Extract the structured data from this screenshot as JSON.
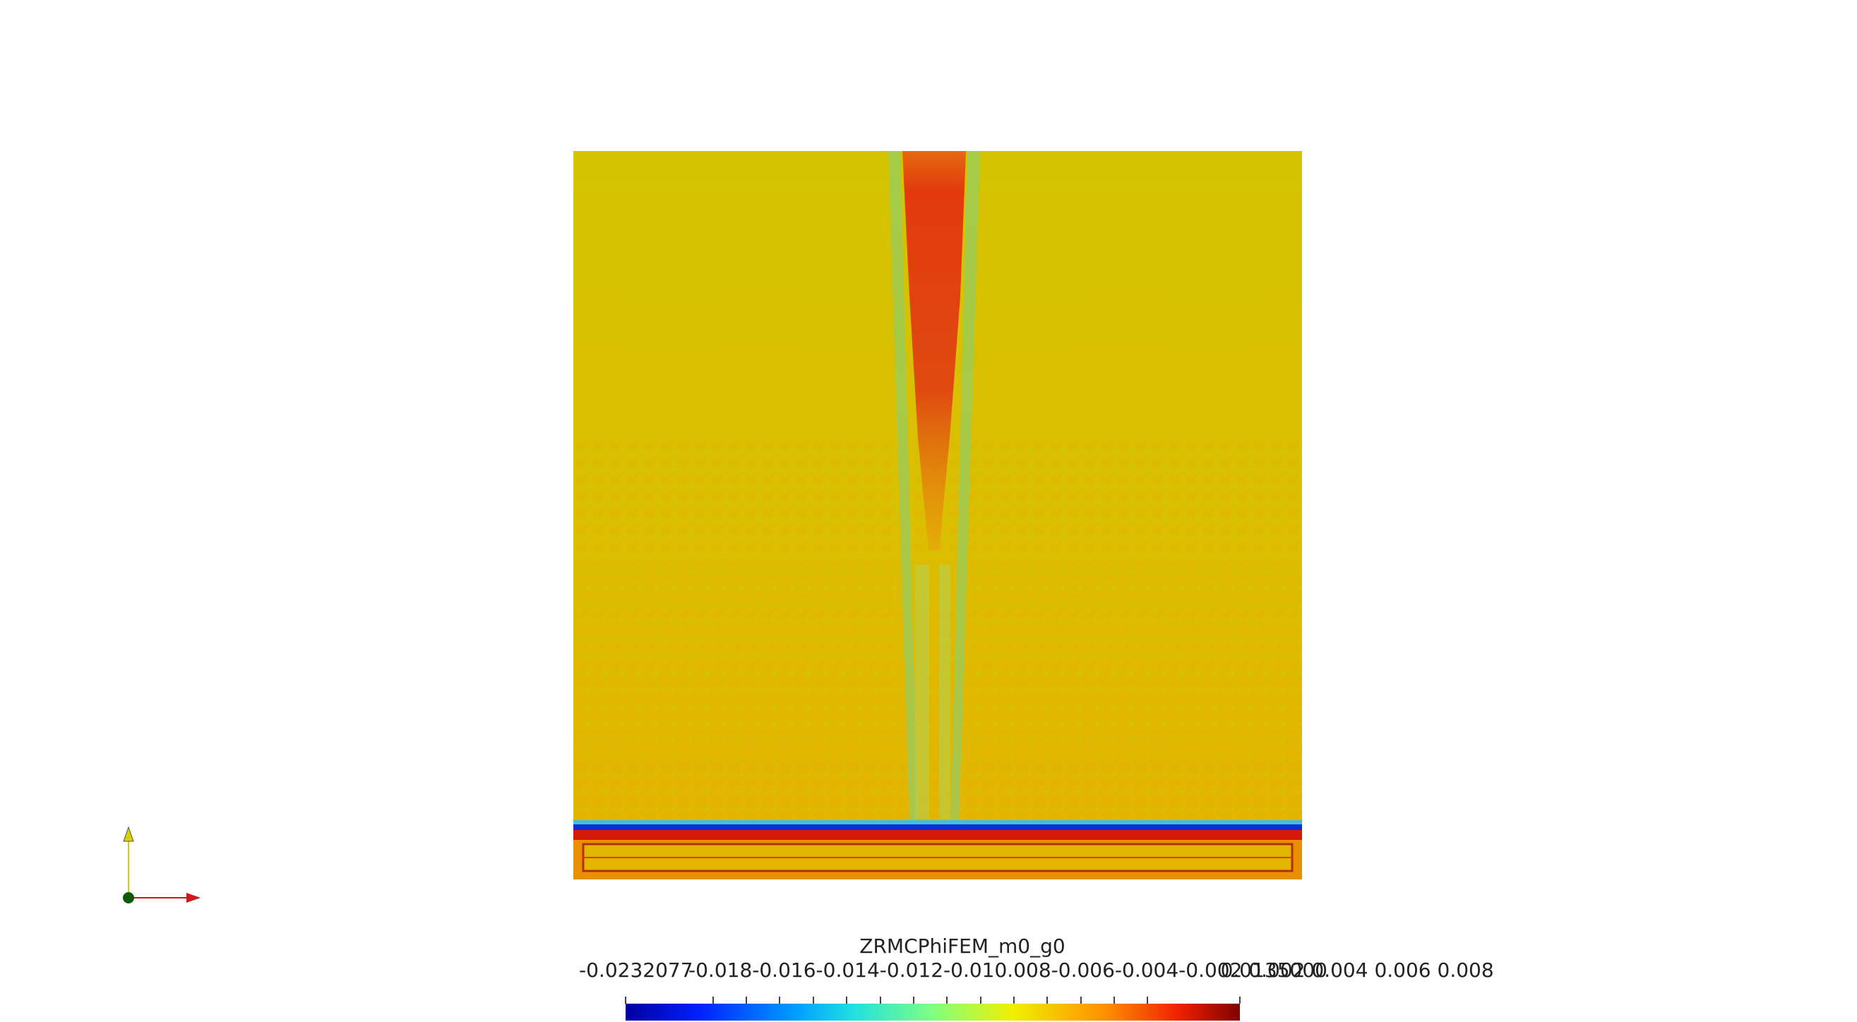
{
  "scalar_bar": {
    "title": "ZRMCPhiFEM_m0_g0",
    "min_label": "-0.0232077",
    "max_label": "0.0135000",
    "overlapping_ticks_text": "-0.018-0.016-0.014-0.012-0.010.008-0.006-0.004-0.002 0.002 0.004 0.006 0.008",
    "range": [
      -0.0232077,
      0.0135
    ]
  },
  "colors": {
    "background": "#ffffff",
    "field_base": "#d6c400",
    "field_noise": "#e9b000",
    "plume": "#e43b0e",
    "plume_edge": "#7fd27f",
    "bar_dark": "#0a2dd6",
    "bar_red": "#d6190a",
    "axis_x": "#cc1a1a",
    "axis_y": "#d8d000",
    "axis_origin": "#0a5a0a"
  },
  "icons": {
    "axes": "orientation-axes-icon"
  }
}
